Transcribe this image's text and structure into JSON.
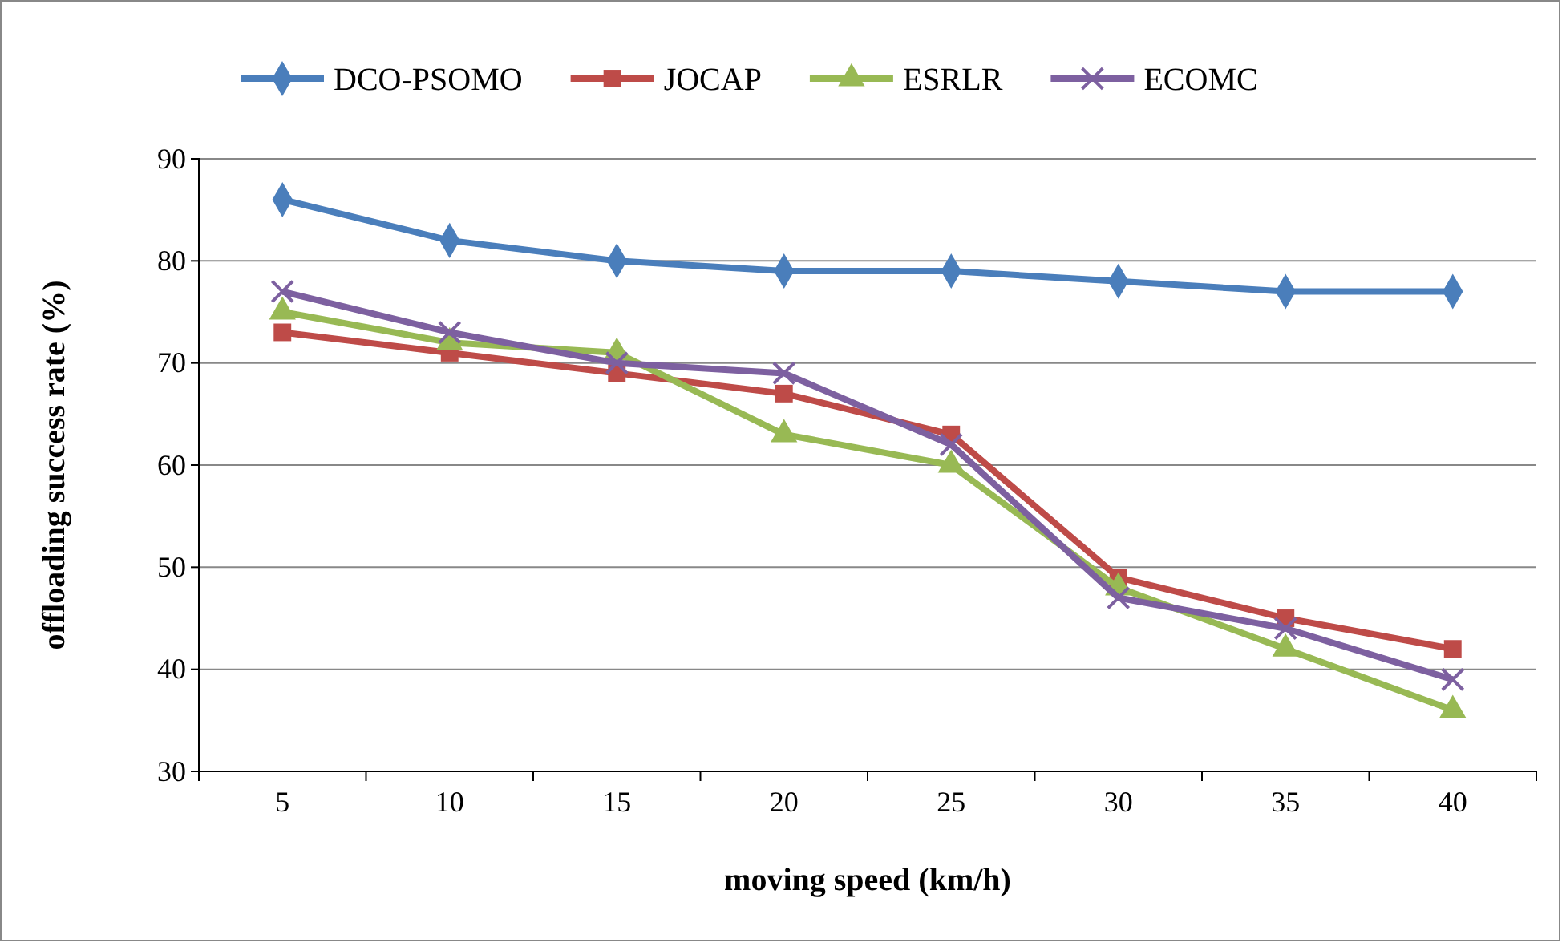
{
  "chart_data": {
    "type": "line",
    "xlabel": "moving speed (km/h)",
    "ylabel": "offloading success rate (%)",
    "categories": [
      "5",
      "10",
      "15",
      "20",
      "25",
      "30",
      "35",
      "40"
    ],
    "ylim": [
      30,
      90
    ],
    "yticks": [
      30,
      40,
      50,
      60,
      70,
      80,
      90
    ],
    "grid": "y",
    "legend": "top",
    "series": [
      {
        "name": "DCO-PSOMO",
        "color": "#4a7ebb",
        "marker": "diamond",
        "values": [
          86,
          82,
          80,
          79,
          79,
          78,
          77,
          77
        ]
      },
      {
        "name": "JOCAP",
        "color": "#be4b48",
        "marker": "square",
        "values": [
          73,
          71,
          69,
          67,
          63,
          49,
          45,
          42
        ]
      },
      {
        "name": "ESRLR",
        "color": "#98b954",
        "marker": "triangle",
        "values": [
          75,
          72,
          71,
          63,
          60,
          48,
          42,
          36
        ]
      },
      {
        "name": "ECOMC",
        "color": "#7d60a0",
        "marker": "cross",
        "values": [
          77,
          73,
          70,
          69,
          62,
          47,
          44,
          39
        ]
      }
    ]
  }
}
